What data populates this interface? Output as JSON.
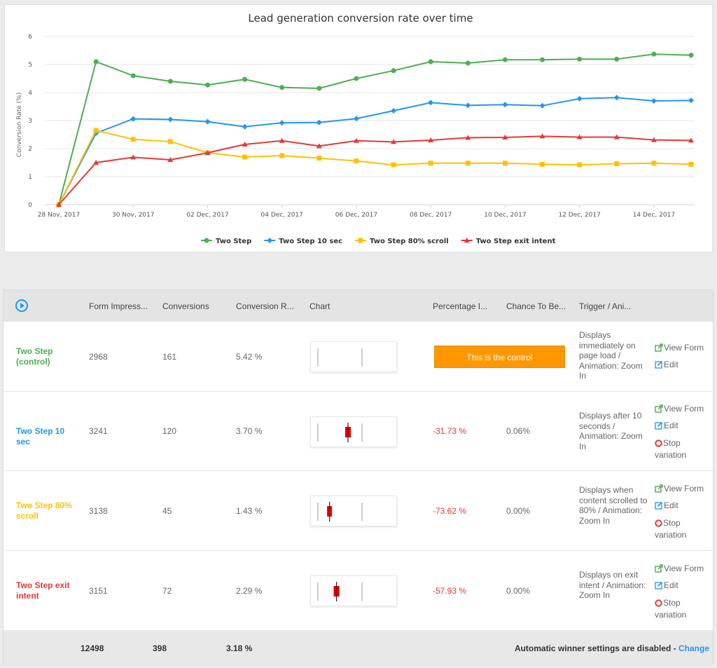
{
  "chart_data": {
    "type": "line",
    "title": "Lead generation conversion rate over time",
    "ylabel": "Conversion Rate (%)",
    "xlabel": "",
    "ylim": [
      0,
      6
    ],
    "yticks": [
      0,
      1,
      2,
      3,
      4,
      5,
      6
    ],
    "x": [
      "28 Nov, 2017",
      "29 Nov, 2017",
      "30 Nov, 2017",
      "01 Dec, 2017",
      "02 Dec, 2017",
      "03 Dec, 2017",
      "04 Dec, 2017",
      "05 Dec, 2017",
      "06 Dec, 2017",
      "07 Dec, 2017",
      "08 Dec, 2017",
      "09 Dec, 2017",
      "10 Dec, 2017",
      "11 Dec, 2017",
      "12 Dec, 2017",
      "13 Dec, 2017",
      "14 Dec, 2017",
      "15 Dec, 2017"
    ],
    "xtick_labels": [
      "28 Nov, 2017",
      "30 Nov, 2017",
      "02 Dec, 2017",
      "04 Dec, 2017",
      "06 Dec, 2017",
      "08 Dec, 2017",
      "10 Dec, 2017",
      "12 Dec, 2017",
      "14 Dec, 2017"
    ],
    "grid": true,
    "legend_position": "bottom",
    "series": [
      {
        "name": "Two Step",
        "color": "#4caf50",
        "marker": "circle",
        "values": [
          0,
          5.1,
          4.6,
          4.4,
          4.27,
          4.47,
          4.18,
          4.15,
          4.5,
          4.78,
          5.1,
          5.05,
          5.17,
          5.17,
          5.19,
          5.19,
          5.37,
          5.33
        ]
      },
      {
        "name": "Two Step 10 sec",
        "color": "#2196f3",
        "marker": "diamond",
        "values": [
          0,
          2.55,
          3.06,
          3.04,
          2.96,
          2.78,
          2.92,
          2.93,
          3.07,
          3.35,
          3.64,
          3.54,
          3.57,
          3.53,
          3.78,
          3.82,
          3.7,
          3.72
        ]
      },
      {
        "name": "Two Step 80% scroll",
        "color": "#ffc107",
        "marker": "square",
        "values": [
          0,
          2.65,
          2.33,
          2.25,
          1.85,
          1.7,
          1.75,
          1.66,
          1.56,
          1.42,
          1.48,
          1.48,
          1.48,
          1.44,
          1.42,
          1.46,
          1.48,
          1.44
        ]
      },
      {
        "name": "Two Step exit intent",
        "color": "#e53935",
        "marker": "triangle",
        "values": [
          0,
          1.5,
          1.69,
          1.6,
          1.85,
          2.15,
          2.28,
          2.09,
          2.28,
          2.24,
          2.3,
          2.39,
          2.4,
          2.44,
          2.41,
          2.41,
          2.31,
          2.29
        ]
      }
    ]
  },
  "table": {
    "headers": {
      "impressions": "Form Impress...",
      "conversions": "Conversions",
      "rate": "Conversion R...",
      "chart": "Chart",
      "percentage": "Percentage I...",
      "chance": "Chance To Be...",
      "trigger": "Trigger / Ani..."
    },
    "rows": [
      {
        "name": "Two Step (control)",
        "color": "#4caf50",
        "impressions": "2968",
        "conversions": "161",
        "rate": "5.42 %",
        "percentage": "",
        "chance": "",
        "control_label": "This is the control",
        "trigger": "Displays immediately on page load / Animation: Zoom In",
        "interval": null
      },
      {
        "name": "Two Step 10 sec",
        "color": "#2196f3",
        "impressions": "3241",
        "conversions": "120",
        "rate": "3.70 %",
        "percentage": "-31.73 %",
        "chance": "0.06%",
        "control_label": "",
        "trigger": "Displays after 10 seconds / Animation: Zoom In",
        "interval": {
          "mid": 3.7,
          "low": 3.3,
          "high": 4.1,
          "box": 0.35
        }
      },
      {
        "name": "Two Step 80% scroll",
        "color": "#ffc107",
        "impressions": "3138",
        "conversions": "45",
        "rate": "1.43 %",
        "percentage": "-73.62 %",
        "chance": "0.00%",
        "control_label": "",
        "trigger": "Displays when content scrolled to 80% / Animation: Zoom In",
        "interval": {
          "mid": 1.43,
          "low": 1.1,
          "high": 1.8,
          "box": 0.3
        }
      },
      {
        "name": "Two Step exit intent",
        "color": "#e53935",
        "impressions": "3151",
        "conversions": "72",
        "rate": "2.29 %",
        "percentage": "-57.93 %",
        "chance": "0.00%",
        "control_label": "",
        "trigger": "Displays on exit intent / Animation: Zoom In",
        "interval": {
          "mid": 2.29,
          "low": 1.9,
          "high": 2.7,
          "box": 0.35
        }
      }
    ],
    "mini_chart_control_rate": 5.42,
    "actions": {
      "view_form": "View Form",
      "edit": "Edit",
      "stop_variation": "Stop variation"
    },
    "footer": {
      "total_impressions": "12498",
      "total_conversions": "398",
      "total_rate": "3.18 %",
      "winner_text": "Automatic winner settings are disabled - ",
      "change_label": "Change"
    }
  },
  "icons": {
    "play": "play-circle-icon",
    "view_form": "external-link-icon",
    "edit": "edit-icon",
    "stop": "stop-circle-icon"
  }
}
